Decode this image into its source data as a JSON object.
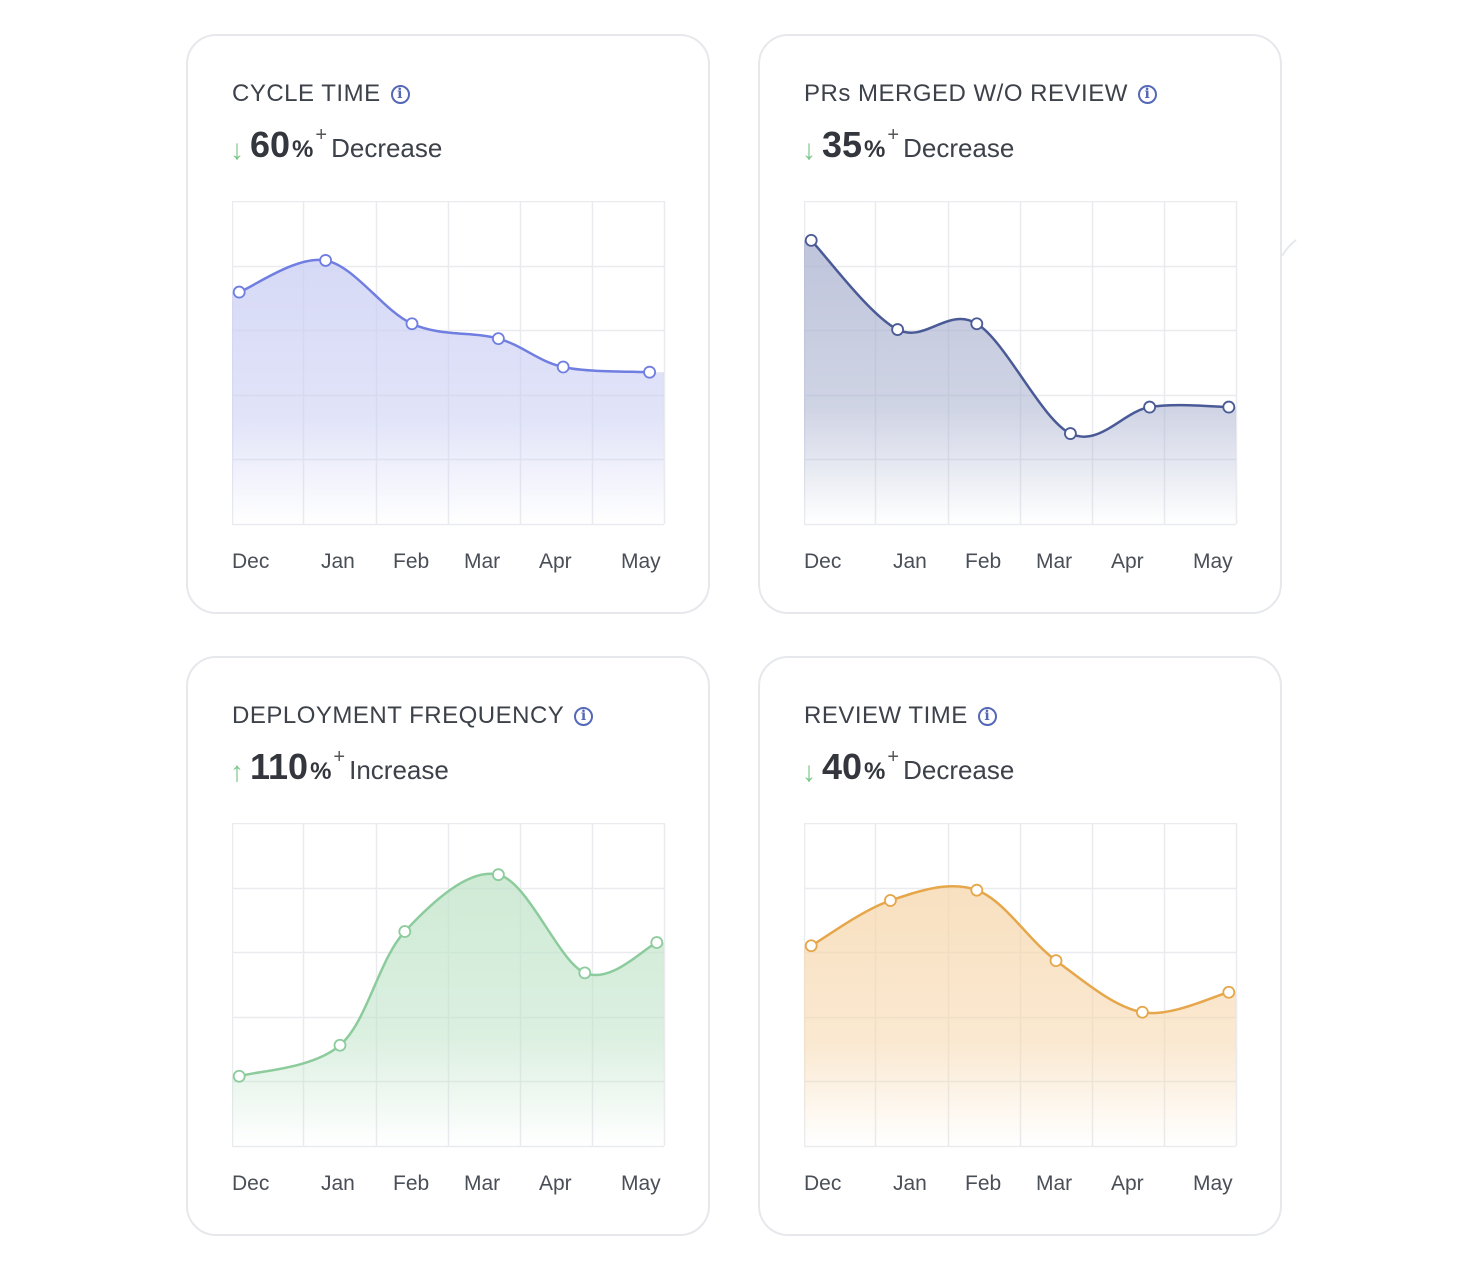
{
  "cards": [
    {
      "title": "CYCLE TIME",
      "direction": "down",
      "value": "60",
      "unit": "%",
      "plus": "+",
      "label": "Decrease",
      "line_color": "#6f7ee0",
      "fill_color": "#c9cdf3"
    },
    {
      "title": "PRs MERGED W/O REVIEW",
      "direction": "down",
      "value": "35",
      "unit": "%",
      "plus": "+",
      "label": "Decrease",
      "line_color": "#4a5a96",
      "fill_color": "#a9b1cf"
    },
    {
      "title": "DEPLOYMENT FREQUENCY",
      "direction": "up",
      "value": "110",
      "unit": "%",
      "plus": "+",
      "label": "Increase",
      "line_color": "#8ccb9c",
      "fill_color": "#bfe3c8"
    },
    {
      "title": "REVIEW TIME",
      "direction": "down",
      "value": "40",
      "unit": "%",
      "plus": "+",
      "label": "Decrease",
      "line_color": "#e6a64a",
      "fill_color": "#f6d6ab"
    }
  ],
  "icons": {
    "info": "info-icon",
    "down": "arrow-down-icon",
    "up": "arrow-up-icon"
  },
  "chart_data": [
    {
      "type": "area",
      "categories": [
        "Dec",
        "Jan",
        "Feb",
        "Mar",
        "Apr",
        "May"
      ],
      "x": [
        0.1,
        1.3,
        2.5,
        3.7,
        4.6,
        5.8
      ],
      "values": [
        3.59,
        4.08,
        3.1,
        2.87,
        2.43,
        2.35
      ],
      "ylim": [
        0,
        5
      ],
      "xlim": [
        0,
        6
      ],
      "grid": true
    },
    {
      "type": "area",
      "categories": [
        "Dec",
        "Jan",
        "Feb",
        "Mar",
        "Apr",
        "May"
      ],
      "x": [
        0.1,
        1.3,
        2.4,
        3.7,
        4.8,
        5.9
      ],
      "values": [
        4.39,
        3.01,
        3.1,
        1.4,
        1.81,
        1.81
      ],
      "ylim": [
        0,
        5
      ],
      "xlim": [
        0,
        6
      ],
      "grid": true
    },
    {
      "type": "area",
      "categories": [
        "Dec",
        "Jan",
        "Feb",
        "Mar",
        "Apr",
        "May"
      ],
      "x": [
        0.1,
        1.5,
        2.4,
        3.7,
        4.9,
        5.9
      ],
      "values": [
        1.08,
        1.56,
        3.32,
        4.2,
        2.68,
        3.15
      ],
      "ylim": [
        0,
        5
      ],
      "xlim": [
        0,
        6
      ],
      "grid": true
    },
    {
      "type": "area",
      "categories": [
        "Dec",
        "Jan",
        "Feb",
        "Mar",
        "Apr",
        "May"
      ],
      "x": [
        0.1,
        1.2,
        2.4,
        3.5,
        4.7,
        5.9
      ],
      "values": [
        3.1,
        3.8,
        3.96,
        2.87,
        2.07,
        2.38
      ],
      "ylim": [
        0,
        5
      ],
      "xlim": [
        0,
        6
      ],
      "grid": true
    }
  ]
}
